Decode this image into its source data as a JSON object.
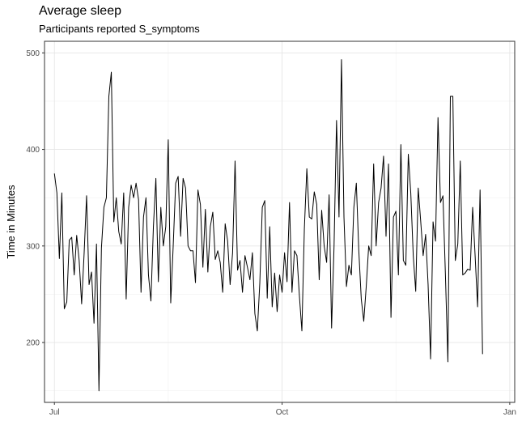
{
  "chart_data": {
    "type": "line",
    "title": "Average sleep",
    "subtitle": "Participants reported S_symptoms",
    "xlabel": "",
    "ylabel": "Time in Minutes",
    "x_axis": "date",
    "x_range": [
      "2021-06-27",
      "2022-01-03"
    ],
    "ylim": [
      138,
      512
    ],
    "x_ticks": [
      {
        "date": "2021-07-01",
        "label": "Jul"
      },
      {
        "date": "2021-10-01",
        "label": "Oct"
      },
      {
        "date": "2022-01-01",
        "label": "Jan"
      }
    ],
    "y_ticks": [
      200,
      300,
      400,
      500
    ],
    "grid": true,
    "line_color": "#000000",
    "series": [
      {
        "start_date": "2021-07-01",
        "values": [
          375,
          355,
          287,
          355,
          235,
          242,
          306,
          309,
          270,
          311,
          285,
          240,
          292,
          352,
          260,
          273,
          220,
          302,
          150,
          298,
          340,
          350,
          455,
          480,
          325,
          350,
          315,
          302,
          355,
          245,
          340,
          363,
          350,
          365,
          348,
          252,
          330,
          350,
          270,
          243,
          320,
          370,
          263,
          340,
          300,
          320,
          410,
          241,
          300,
          365,
          372,
          310,
          370,
          360,
          300,
          295,
          295,
          262,
          358,
          343,
          278,
          338,
          273,
          320,
          335,
          286,
          295,
          283,
          252,
          323,
          305,
          260,
          293,
          388,
          275,
          285,
          252,
          290,
          278,
          265,
          293,
          230,
          212,
          262,
          340,
          347,
          246,
          320,
          237,
          272,
          232,
          270,
          252,
          293,
          263,
          345,
          252,
          295,
          290,
          248,
          212,
          318,
          380,
          330,
          328,
          356,
          343,
          265,
          337,
          300,
          283,
          353,
          215,
          300,
          430,
          330,
          493,
          330,
          258,
          280,
          270,
          340,
          365,
          295,
          245,
          222,
          258,
          300,
          290,
          385,
          300,
          345,
          360,
          393,
          310,
          385,
          226,
          330,
          336,
          270,
          405,
          285,
          280,
          395,
          355,
          290,
          253,
          360,
          326,
          290,
          312,
          260,
          183,
          325,
          305,
          433,
          345,
          352,
          270,
          180,
          455,
          455,
          285,
          302,
          388,
          270,
          272,
          276,
          275,
          340,
          290,
          237,
          358,
          188
        ]
      }
    ]
  }
}
